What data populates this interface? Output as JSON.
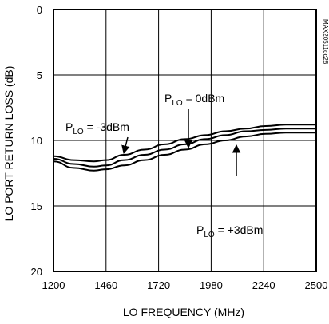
{
  "chart_data": {
    "type": "line",
    "title": "",
    "xlabel": "LO FREQUENCY (MHz)",
    "ylabel": "LO PORT RETURN LOSS (dB)",
    "xlim": [
      1200,
      2500
    ],
    "ylim": [
      0,
      20
    ],
    "y_inverted": true,
    "grid": true,
    "x_ticks": [
      "1200",
      "1460",
      "1720",
      "1980",
      "2240",
      "2500"
    ],
    "y_ticks": [
      "0",
      "5",
      "10",
      "15",
      "20"
    ],
    "part_number": "MAX20511oc28",
    "series": [
      {
        "name": "PLO = -3dBm",
        "x": [
          1200,
          1300,
          1400,
          1460,
          1550,
          1650,
          1750,
          1850,
          1950,
          2050,
          2150,
          2250,
          2350,
          2450,
          2500
        ],
        "y": [
          11.2,
          11.5,
          11.6,
          11.5,
          11.1,
          10.7,
          10.3,
          9.9,
          9.6,
          9.3,
          9.1,
          8.9,
          8.8,
          8.8,
          8.8
        ]
      },
      {
        "name": "PLO = 0dBm",
        "x": [
          1200,
          1300,
          1400,
          1460,
          1550,
          1650,
          1750,
          1850,
          1950,
          2050,
          2150,
          2250,
          2350,
          2450,
          2500
        ],
        "y": [
          11.4,
          11.8,
          12.0,
          11.9,
          11.5,
          11.1,
          10.7,
          10.3,
          9.9,
          9.6,
          9.3,
          9.2,
          9.1,
          9.1,
          9.1
        ]
      },
      {
        "name": "PLO = +3dBm",
        "x": [
          1200,
          1300,
          1400,
          1460,
          1550,
          1650,
          1750,
          1850,
          1950,
          2050,
          2150,
          2250,
          2350,
          2450,
          2500
        ],
        "y": [
          11.6,
          12.1,
          12.3,
          12.2,
          11.9,
          11.5,
          11.1,
          10.7,
          10.3,
          10.0,
          9.7,
          9.5,
          9.4,
          9.4,
          9.4
        ]
      }
    ],
    "annotations": [
      {
        "main": "P",
        "sub": "LO",
        "rest": " = -3dBm"
      },
      {
        "main": "P",
        "sub": "LO",
        "rest": " = 0dBm"
      },
      {
        "main": "P",
        "sub": "LO",
        "rest": " = +3dBm"
      }
    ]
  }
}
